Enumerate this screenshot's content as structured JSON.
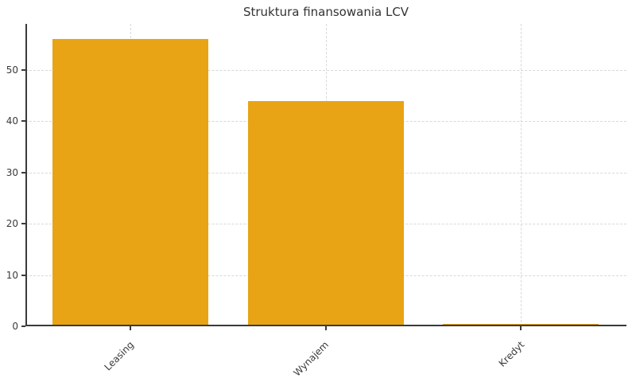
{
  "chart_data": {
    "type": "bar",
    "title": "Struktura finansowania LCV",
    "categories": [
      "Leasing",
      "Wynajem",
      "Kredyt"
    ],
    "values": [
      56,
      44,
      0.5
    ],
    "xlabel": "",
    "ylabel": "",
    "yticks": [
      0,
      10,
      20,
      30,
      40,
      50
    ],
    "ylim": [
      0,
      59
    ],
    "grid": true,
    "grid_style": "dashed",
    "x_tick_rotation": 45,
    "legend": "none",
    "bar_color": "#E8A414",
    "grid_color": "#d8d8d8",
    "axis_color": "#3a3a3a",
    "text_color": "#333333"
  }
}
